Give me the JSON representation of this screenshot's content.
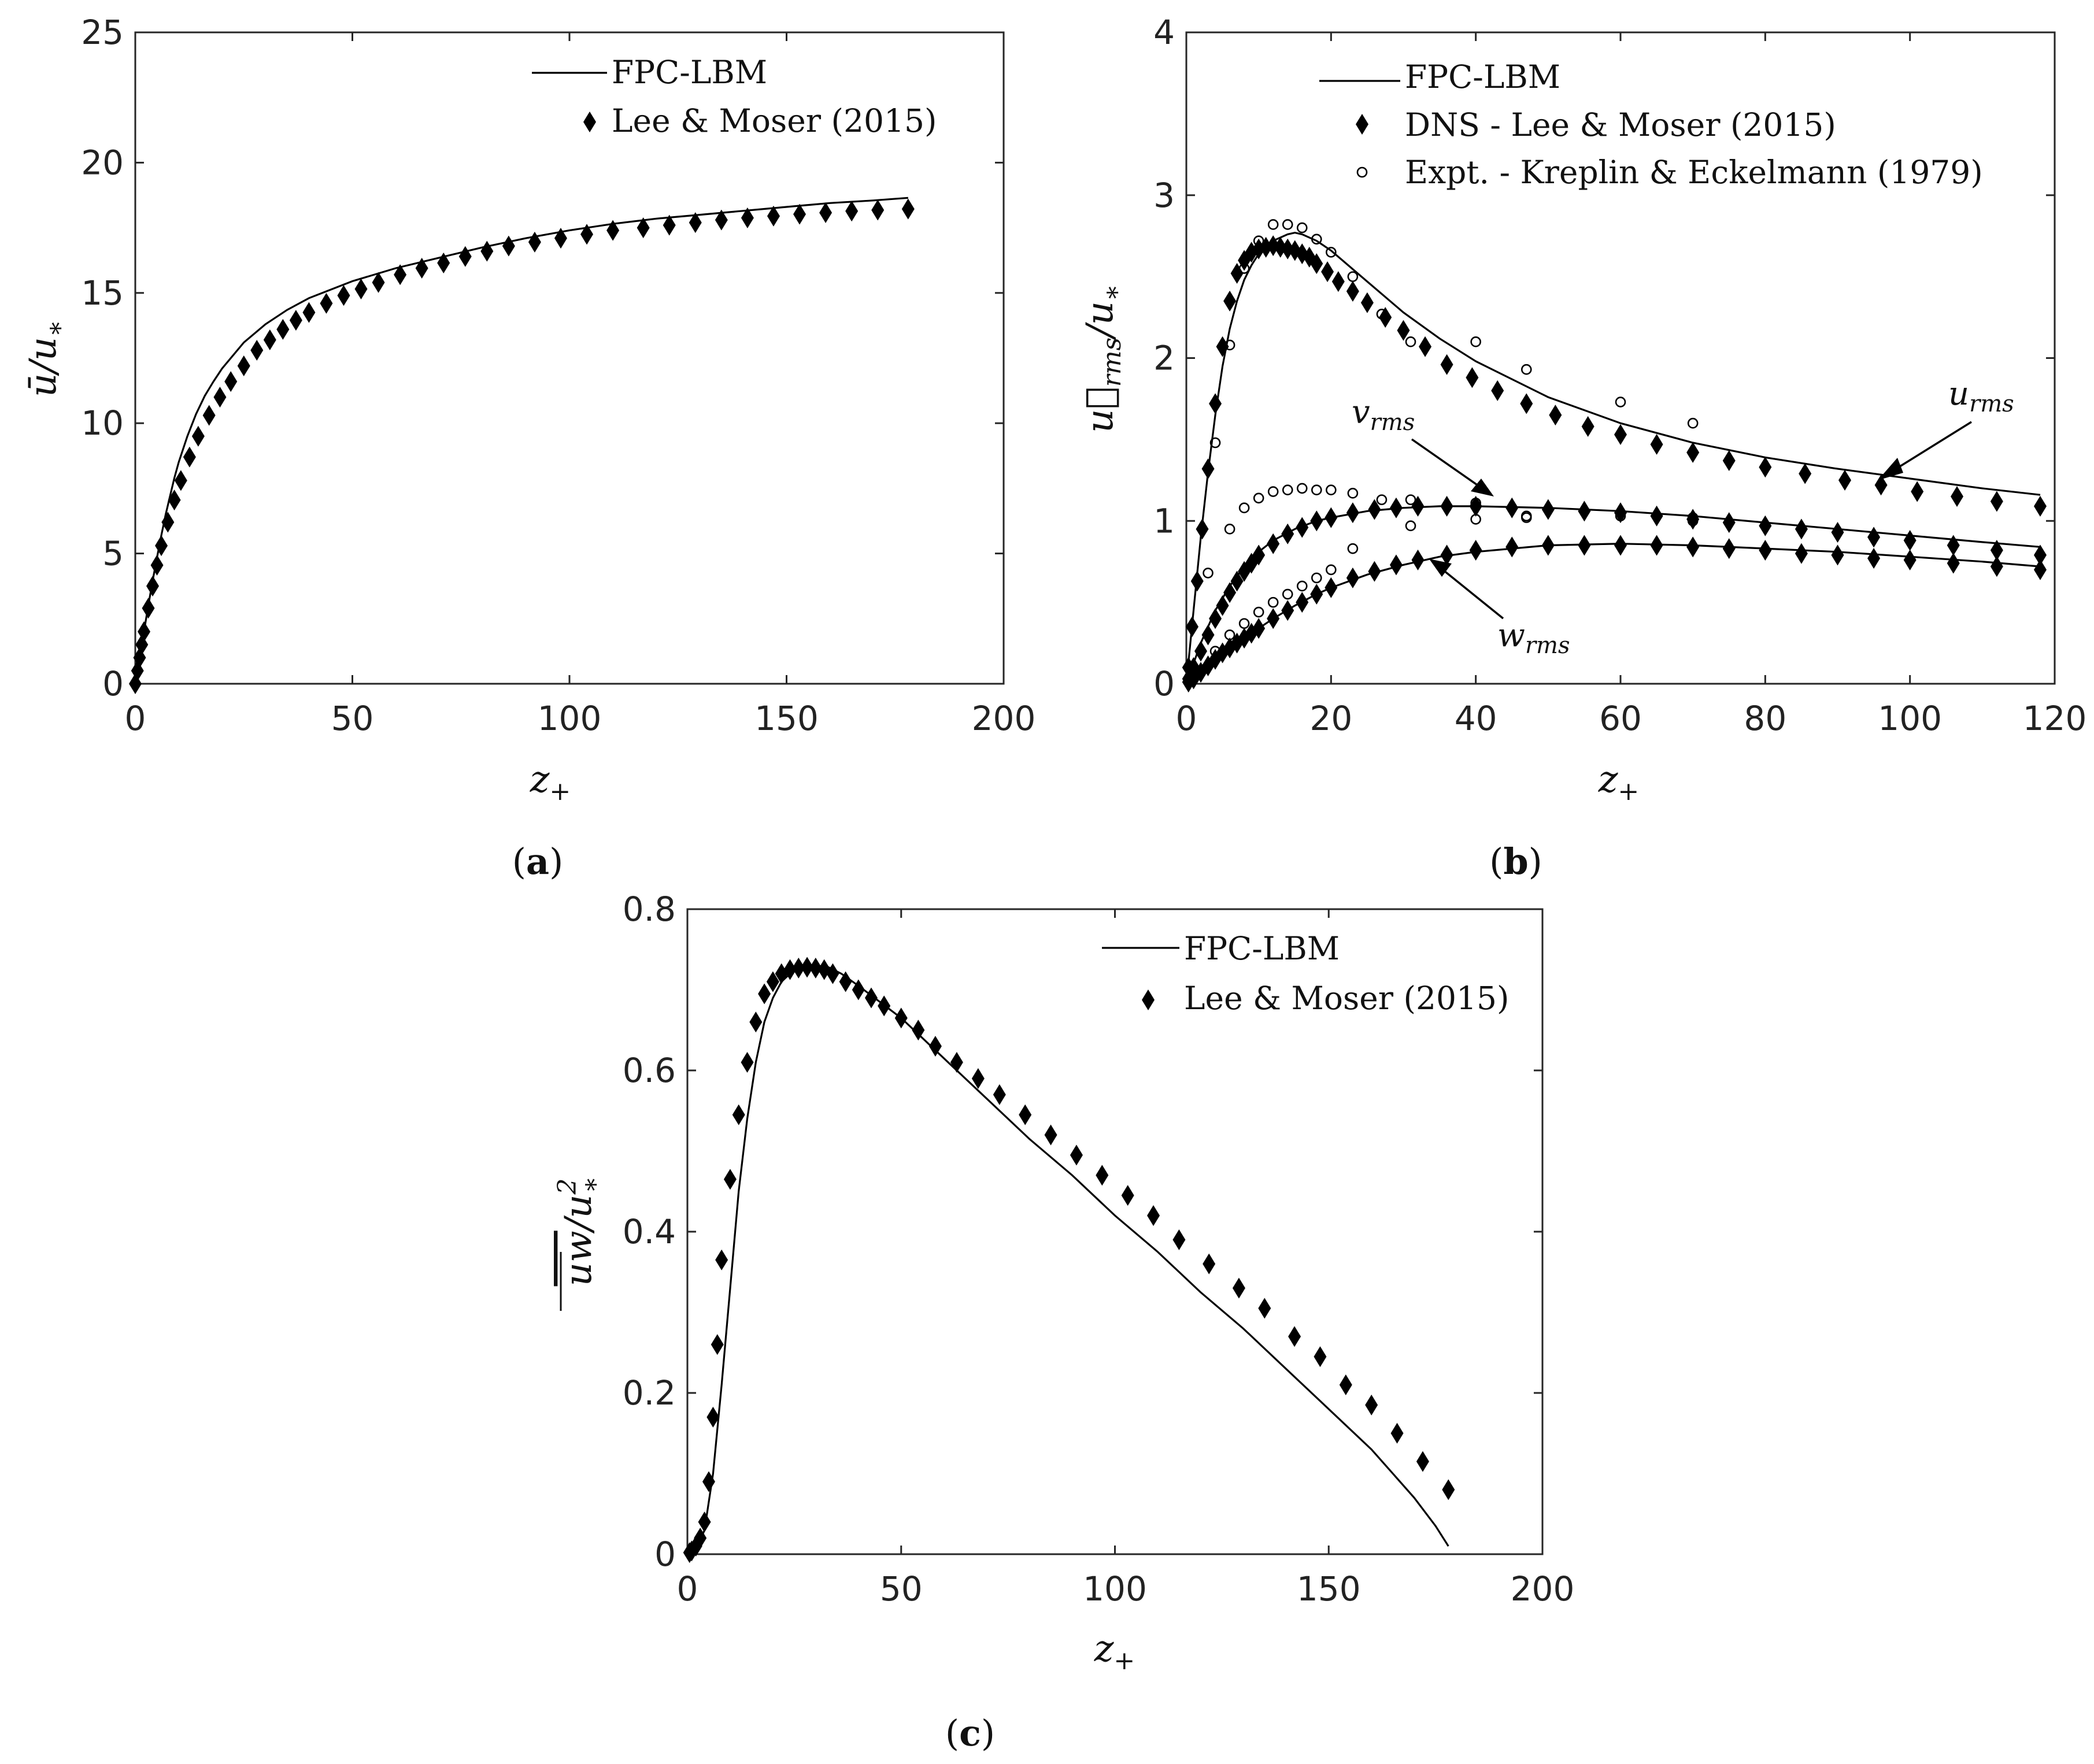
{
  "figure": {
    "panel_labels": [
      "(a)",
      "(b)",
      "(c)"
    ]
  },
  "chart_data": [
    {
      "id": "a",
      "type": "line",
      "panel_label": "(a)",
      "title": "",
      "xlabel": "z+",
      "ylabel": "ū/u*",
      "xlim": [
        0,
        200
      ],
      "ylim": [
        0,
        25
      ],
      "xticks": [
        0,
        50,
        100,
        150,
        200
      ],
      "yticks": [
        0,
        5,
        10,
        15,
        20,
        25
      ],
      "legend_position": "top-right",
      "legend": [
        {
          "label": "FPC-LBM",
          "marker": "line"
        },
        {
          "label": "Lee & Moser (2015)",
          "marker": "diamond"
        }
      ],
      "series": [
        {
          "name": "FPC-LBM",
          "style": "line",
          "x": [
            0,
            1,
            2,
            3,
            4,
            5,
            6,
            7,
            8,
            9,
            10,
            12,
            14,
            16,
            18,
            20,
            25,
            30,
            35,
            40,
            50,
            60,
            70,
            80,
            90,
            100,
            110,
            120,
            130,
            140,
            150,
            160,
            170,
            178
          ],
          "y": [
            0,
            1.0,
            2.0,
            3.0,
            3.95,
            4.85,
            5.7,
            6.5,
            7.2,
            7.9,
            8.5,
            9.5,
            10.35,
            11.05,
            11.6,
            12.1,
            13.1,
            13.8,
            14.35,
            14.8,
            15.45,
            15.95,
            16.35,
            16.75,
            17.1,
            17.4,
            17.65,
            17.85,
            18.0,
            18.15,
            18.3,
            18.45,
            18.55,
            18.65
          ]
        },
        {
          "name": "Lee & Moser (2015)",
          "style": "diamond",
          "x": [
            0,
            0.5,
            1,
            1.5,
            2,
            3,
            4,
            5,
            6,
            7.5,
            9,
            10.5,
            12.5,
            14.5,
            17,
            19.5,
            22,
            25,
            28,
            31,
            34,
            37,
            40,
            44,
            48,
            52,
            56,
            61,
            66,
            71,
            76,
            81,
            86,
            92,
            98,
            104,
            110,
            117,
            123,
            129,
            135,
            141,
            147,
            153,
            159,
            165,
            171,
            178
          ],
          "y": [
            0,
            0.5,
            1.0,
            1.5,
            2.0,
            2.9,
            3.75,
            4.55,
            5.3,
            6.2,
            7.05,
            7.8,
            8.7,
            9.5,
            10.3,
            11.0,
            11.6,
            12.2,
            12.8,
            13.2,
            13.6,
            13.95,
            14.25,
            14.6,
            14.9,
            15.15,
            15.4,
            15.7,
            15.95,
            16.15,
            16.4,
            16.6,
            16.8,
            16.95,
            17.1,
            17.25,
            17.4,
            17.5,
            17.6,
            17.7,
            17.8,
            17.88,
            17.95,
            18.02,
            18.08,
            18.14,
            18.18,
            18.22
          ]
        }
      ]
    },
    {
      "id": "b",
      "type": "line",
      "panel_label": "(b)",
      "title": "",
      "xlabel": "z+",
      "ylabel": "u⃗_rms/u*",
      "xlim": [
        0,
        120
      ],
      "ylim": [
        0,
        4
      ],
      "xticks": [
        0,
        20,
        40,
        60,
        80,
        100,
        120
      ],
      "yticks": [
        0,
        1,
        2,
        3,
        4
      ],
      "legend_position": "top-left",
      "legend": [
        {
          "label": "FPC-LBM",
          "marker": "line"
        },
        {
          "label": "DNS - Lee & Moser (2015)",
          "marker": "diamond"
        },
        {
          "label": "Expt. - Kreplin & Eckelmann (1979)",
          "marker": "circle"
        }
      ],
      "annotations": [
        {
          "text": "u_rms",
          "base": "u",
          "sub": "rms"
        },
        {
          "text": "v_rms",
          "base": "v",
          "sub": "rms"
        },
        {
          "text": "w_rms",
          "base": "w",
          "sub": "rms"
        }
      ],
      "series": [
        {
          "name": "FPC-LBM u_rms",
          "style": "line",
          "x": [
            0,
            1,
            2,
            3,
            4,
            5,
            6,
            7,
            8,
            9,
            10,
            12,
            14,
            15,
            16,
            18,
            20,
            25,
            30,
            35,
            40,
            50,
            60,
            70,
            80,
            90,
            100,
            110,
            118
          ],
          "y": [
            0,
            0.45,
            0.9,
            1.3,
            1.65,
            1.95,
            2.18,
            2.35,
            2.48,
            2.57,
            2.64,
            2.72,
            2.76,
            2.77,
            2.76,
            2.72,
            2.66,
            2.47,
            2.28,
            2.12,
            1.98,
            1.76,
            1.6,
            1.48,
            1.39,
            1.32,
            1.26,
            1.2,
            1.16
          ]
        },
        {
          "name": "DNS u_rms",
          "style": "diamond",
          "x": [
            0.3,
            0.8,
            1.5,
            2.2,
            3,
            4,
            5,
            6,
            7,
            8,
            9,
            10,
            11,
            12,
            13,
            14,
            15,
            16,
            17,
            18,
            19.5,
            21,
            23,
            25,
            27.5,
            30,
            33,
            36,
            39.5,
            43,
            47,
            51,
            55.5,
            60,
            65,
            70,
            75,
            80,
            85.5,
            91,
            96,
            101,
            106.5,
            112,
            118
          ],
          "y": [
            0.1,
            0.35,
            0.63,
            0.95,
            1.32,
            1.72,
            2.07,
            2.35,
            2.52,
            2.6,
            2.65,
            2.67,
            2.68,
            2.69,
            2.68,
            2.67,
            2.66,
            2.64,
            2.62,
            2.58,
            2.53,
            2.47,
            2.41,
            2.34,
            2.25,
            2.17,
            2.07,
            1.96,
            1.88,
            1.8,
            1.72,
            1.65,
            1.58,
            1.53,
            1.47,
            1.42,
            1.37,
            1.33,
            1.29,
            1.25,
            1.22,
            1.18,
            1.15,
            1.12,
            1.09
          ]
        },
        {
          "name": "Expt. u_rms",
          "style": "circle",
          "x": [
            4,
            6,
            8,
            10,
            12,
            14,
            16,
            18,
            20,
            23,
            27,
            31,
            40,
            47,
            60,
            70
          ],
          "y": [
            1.48,
            2.08,
            2.55,
            2.72,
            2.82,
            2.82,
            2.8,
            2.73,
            2.65,
            2.5,
            2.27,
            2.1,
            2.1,
            1.93,
            1.73,
            1.6
          ]
        },
        {
          "name": "FPC-LBM v_rms",
          "style": "line",
          "x": [
            0,
            2,
            4,
            6,
            8,
            10,
            12,
            15,
            18,
            20,
            25,
            30,
            35,
            40,
            50,
            60,
            70,
            80,
            90,
            100,
            110,
            118
          ],
          "y": [
            0,
            0.25,
            0.45,
            0.6,
            0.72,
            0.81,
            0.88,
            0.95,
            1.0,
            1.02,
            1.06,
            1.08,
            1.09,
            1.09,
            1.08,
            1.06,
            1.03,
            0.99,
            0.95,
            0.91,
            0.87,
            0.84
          ]
        },
        {
          "name": "DNS v_rms",
          "style": "diamond",
          "x": [
            0.3,
            1,
            2,
            3,
            4,
            5,
            6,
            7,
            8,
            9,
            10,
            12,
            14,
            16,
            18,
            20,
            23,
            26,
            29,
            32,
            36,
            40,
            45,
            50,
            55,
            60,
            65,
            70,
            75,
            80,
            85,
            90,
            95,
            100,
            106,
            112,
            118
          ],
          "y": [
            0.03,
            0.1,
            0.2,
            0.3,
            0.4,
            0.48,
            0.56,
            0.63,
            0.69,
            0.74,
            0.79,
            0.86,
            0.92,
            0.96,
            1.0,
            1.02,
            1.05,
            1.07,
            1.08,
            1.09,
            1.09,
            1.09,
            1.08,
            1.07,
            1.06,
            1.05,
            1.03,
            1.01,
            0.99,
            0.97,
            0.95,
            0.93,
            0.9,
            0.88,
            0.85,
            0.82,
            0.79
          ]
        },
        {
          "name": "Expt. v_rms",
          "style": "circle",
          "x": [
            3,
            6,
            8,
            10,
            12,
            14,
            16,
            18,
            20,
            23,
            27,
            31,
            40,
            47,
            60,
            70
          ],
          "y": [
            0.68,
            0.95,
            1.08,
            1.14,
            1.18,
            1.19,
            1.2,
            1.19,
            1.19,
            1.17,
            1.13,
            1.13,
            1.11,
            1.02,
            1.03,
            1.02
          ]
        },
        {
          "name": "FPC-LBM w_rms",
          "style": "line",
          "x": [
            0,
            2,
            4,
            6,
            8,
            10,
            12,
            15,
            18,
            20,
            25,
            30,
            35,
            40,
            50,
            60,
            70,
            80,
            90,
            100,
            110,
            118
          ],
          "y": [
            0,
            0.05,
            0.13,
            0.2,
            0.27,
            0.34,
            0.4,
            0.48,
            0.55,
            0.59,
            0.67,
            0.73,
            0.78,
            0.81,
            0.85,
            0.86,
            0.85,
            0.83,
            0.81,
            0.78,
            0.75,
            0.72
          ]
        },
        {
          "name": "DNS w_rms",
          "style": "diamond",
          "x": [
            0.3,
            1,
            2,
            3,
            4,
            5,
            6,
            7,
            8,
            9,
            10,
            12,
            14,
            16,
            18,
            20,
            23,
            26,
            29,
            32,
            36,
            40,
            45,
            50,
            55,
            60,
            65,
            70,
            75,
            80,
            85,
            90,
            95,
            100,
            106,
            112,
            118
          ],
          "y": [
            0.01,
            0.03,
            0.07,
            0.11,
            0.15,
            0.19,
            0.22,
            0.25,
            0.28,
            0.31,
            0.34,
            0.4,
            0.45,
            0.5,
            0.55,
            0.59,
            0.65,
            0.69,
            0.73,
            0.76,
            0.79,
            0.82,
            0.84,
            0.85,
            0.85,
            0.85,
            0.85,
            0.84,
            0.83,
            0.82,
            0.8,
            0.79,
            0.77,
            0.76,
            0.74,
            0.72,
            0.7
          ]
        },
        {
          "name": "Expt. w_rms",
          "style": "circle",
          "x": [
            4,
            6,
            8,
            10,
            12,
            14,
            16,
            18,
            20,
            23,
            31,
            40,
            47,
            60,
            70
          ],
          "y": [
            0.2,
            0.3,
            0.37,
            0.44,
            0.5,
            0.55,
            0.6,
            0.65,
            0.7,
            0.83,
            0.97,
            1.01,
            1.03,
            1.05,
            1.0
          ]
        }
      ]
    },
    {
      "id": "c",
      "type": "line",
      "panel_label": "(c)",
      "title": "",
      "xlabel": "z+",
      "ylabel": "uw̄/u*²",
      "xlim": [
        0,
        200
      ],
      "ylim": [
        0,
        0.8
      ],
      "xticks": [
        0,
        50,
        100,
        150,
        200
      ],
      "yticks": [
        0,
        0.2,
        0.4,
        0.6,
        0.8
      ],
      "legend_position": "top-right",
      "legend": [
        {
          "label": "FPC-LBM",
          "marker": "line"
        },
        {
          "label": "Lee & Moser (2015)",
          "marker": "diamond"
        }
      ],
      "series": [
        {
          "name": "FPC-LBM",
          "style": "line",
          "x": [
            0,
            2,
            4,
            6,
            8,
            10,
            12,
            14,
            16,
            18,
            20,
            22,
            25,
            28,
            30,
            33,
            36,
            40,
            45,
            50,
            60,
            70,
            80,
            90,
            100,
            110,
            120,
            130,
            140,
            150,
            160,
            165,
            170,
            175,
            178
          ],
          "y": [
            0,
            0.005,
            0.03,
            0.1,
            0.21,
            0.33,
            0.45,
            0.54,
            0.61,
            0.66,
            0.69,
            0.71,
            0.725,
            0.73,
            0.73,
            0.728,
            0.72,
            0.705,
            0.685,
            0.665,
            0.615,
            0.565,
            0.515,
            0.47,
            0.42,
            0.375,
            0.325,
            0.28,
            0.23,
            0.18,
            0.13,
            0.1,
            0.07,
            0.035,
            0.01
          ]
        },
        {
          "name": "Lee & Moser (2015)",
          "style": "diamond",
          "x": [
            0.5,
            1,
            2,
            3,
            4,
            5,
            6,
            7,
            8,
            10,
            12,
            14,
            16,
            18,
            20,
            22,
            24,
            26,
            28,
            30,
            32,
            34,
            37,
            40,
            43,
            46,
            50,
            54,
            58,
            63,
            68,
            73,
            79,
            85,
            91,
            97,
            103,
            109,
            115,
            122,
            129,
            135,
            142,
            148,
            154,
            160,
            166,
            172,
            178
          ],
          "y": [
            0.002,
            0.004,
            0.01,
            0.02,
            0.04,
            0.09,
            0.17,
            0.26,
            0.365,
            0.465,
            0.545,
            0.61,
            0.66,
            0.695,
            0.71,
            0.72,
            0.725,
            0.727,
            0.728,
            0.727,
            0.725,
            0.72,
            0.71,
            0.7,
            0.69,
            0.68,
            0.665,
            0.65,
            0.63,
            0.61,
            0.59,
            0.57,
            0.545,
            0.52,
            0.495,
            0.47,
            0.445,
            0.42,
            0.39,
            0.36,
            0.33,
            0.305,
            0.27,
            0.245,
            0.21,
            0.185,
            0.15,
            0.115,
            0.08
          ]
        }
      ]
    }
  ]
}
